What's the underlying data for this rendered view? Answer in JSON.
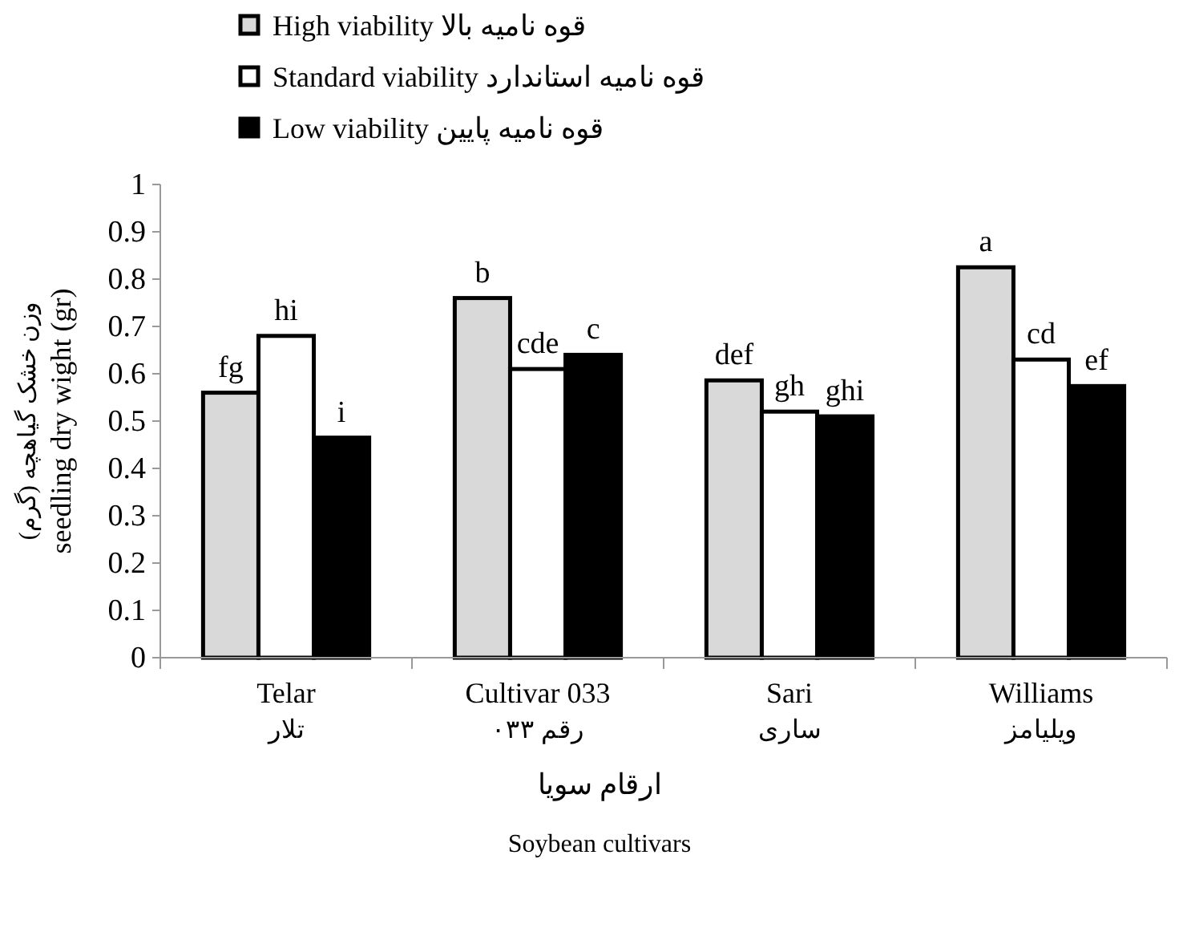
{
  "chart_data": {
    "type": "bar",
    "categories": [
      "Telar\nتلار",
      "Cultivar 033\nرقم ۰۳۳",
      "Sari\nساری",
      "Williams\nویلیامز"
    ],
    "series": [
      {
        "name": "High viability قوه نامیه بالا",
        "color": "#d9d9d9",
        "values": [
          0.56,
          0.76,
          0.586,
          0.825
        ],
        "value_labels": [
          "fg",
          "b",
          "def",
          "a"
        ]
      },
      {
        "name": "Standard viability قوه نامیه استاندارد",
        "color": "#ffffff",
        "values": [
          0.68,
          0.61,
          0.52,
          0.63
        ],
        "value_labels": [
          "hi",
          "cde",
          "gh",
          "cd"
        ]
      },
      {
        "name": "Low viability قوه نامیه پایین",
        "color": "#000000",
        "values": [
          0.465,
          0.64,
          0.51,
          0.574
        ],
        "value_labels": [
          "i",
          "c",
          "ghi",
          "ef"
        ]
      }
    ],
    "xlabel": "ارقام سویا\nSoybean cultivars",
    "ylabel": "وزن خشک گیاهچه (گرم)\nseedling dry wight (gr)",
    "ylim": [
      0,
      1
    ],
    "yticks": [
      0,
      0.1,
      0.2,
      0.3,
      0.4,
      0.5,
      0.6,
      0.7,
      0.8,
      0.9,
      1
    ],
    "legend": "top left",
    "grid": false
  }
}
